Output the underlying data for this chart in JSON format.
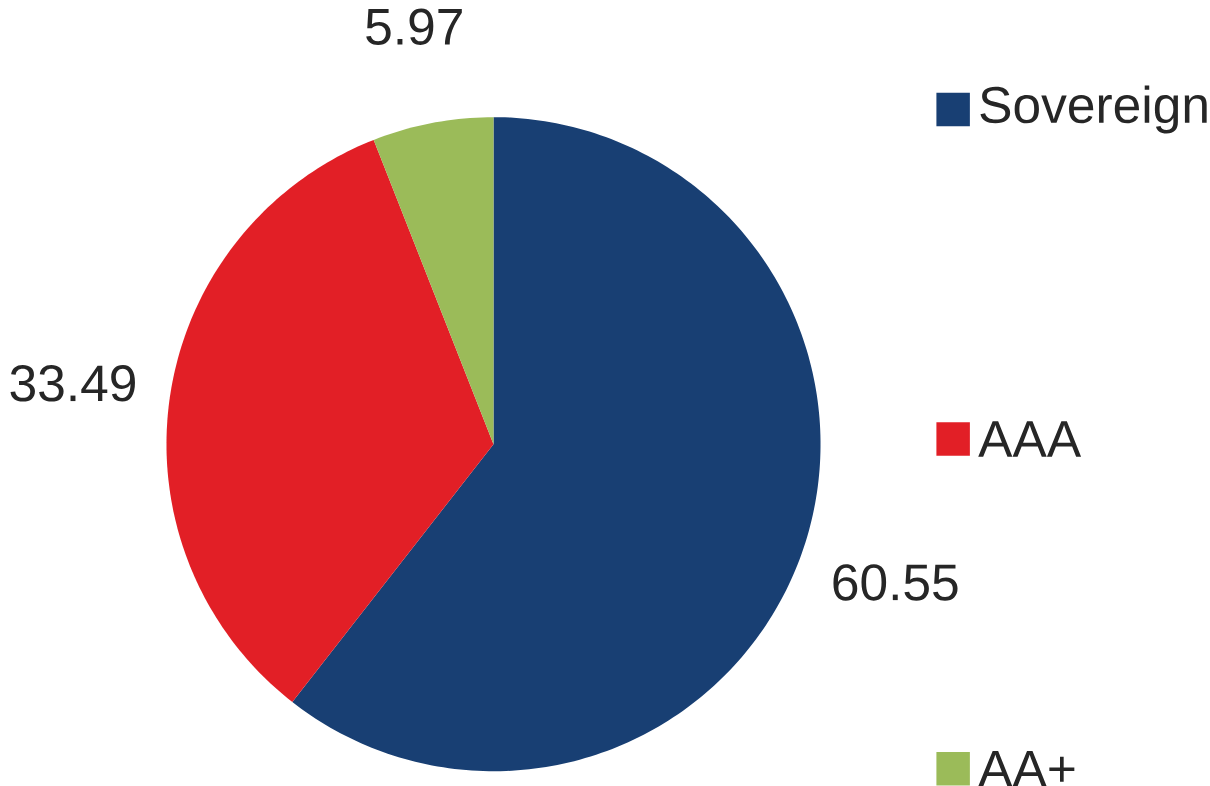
{
  "chart_data": {
    "type": "pie",
    "categories": [
      "Sovereign",
      "AAA",
      "AA+"
    ],
    "values": [
      60.55,
      33.49,
      5.97
    ],
    "colors": [
      "#183f73",
      "#e21f26",
      "#9bbb59"
    ],
    "data_labels": true,
    "legend": "right"
  }
}
